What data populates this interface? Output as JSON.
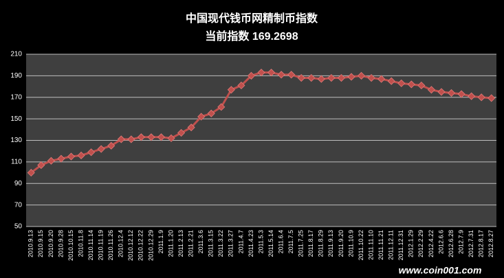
{
  "chart_data": {
    "type": "line",
    "title": "中国现代钱币网精制币指数",
    "subtitle": "当前指数 169.2698",
    "watermark": "www.coin001.com",
    "categories": [
      "2010.9.13",
      "2010.9.15",
      "2010.9.20",
      "2010.9.28",
      "2010.10.15",
      "2010.11.8",
      "2010.11.14",
      "2010.11.19",
      "2010.11.26",
      "2010.12.4",
      "2010.12.12",
      "2010.12.22",
      "2010.12.29",
      "2011.1.9",
      "2011.1.20",
      "2011.2.13",
      "2011.2.21",
      "2011.3.6",
      "2011.3.15",
      "2011.3.22",
      "2011.3.27",
      "2011.4.7",
      "2011.4.23",
      "2011.5.3",
      "2011.5.14",
      "2011.6.4",
      "2011.7.5",
      "2011.7.25",
      "2011.8.17",
      "2011.8.29",
      "2011.9.13",
      "2011.9.20",
      "2011.10.9",
      "2011.10.22",
      "2011.11.10",
      "2011.11.21",
      "2011.12.11",
      "2011.12.31",
      "2012.1.29",
      "2012.2.29",
      "2012.4.22",
      "2012.6.6",
      "2012.6.28",
      "2012.7.9",
      "2012.7.31",
      "2012.8.17",
      "2012.8.27"
    ],
    "values": [
      100,
      107,
      111,
      113,
      115,
      116,
      119,
      122,
      125,
      131,
      131,
      133,
      133,
      133,
      132,
      137,
      142,
      152,
      155,
      161,
      177,
      181,
      190,
      193,
      193,
      191,
      191,
      188,
      188,
      187,
      188,
      188,
      189,
      190,
      188,
      187,
      185,
      183,
      182,
      181,
      177,
      175,
      174,
      173,
      171,
      170,
      169.2698
    ],
    "color": "#c0504d",
    "ylim": [
      50,
      210
    ],
    "yticks": [
      50,
      70,
      90,
      110,
      130,
      150,
      170,
      190,
      210
    ],
    "grid": true
  }
}
